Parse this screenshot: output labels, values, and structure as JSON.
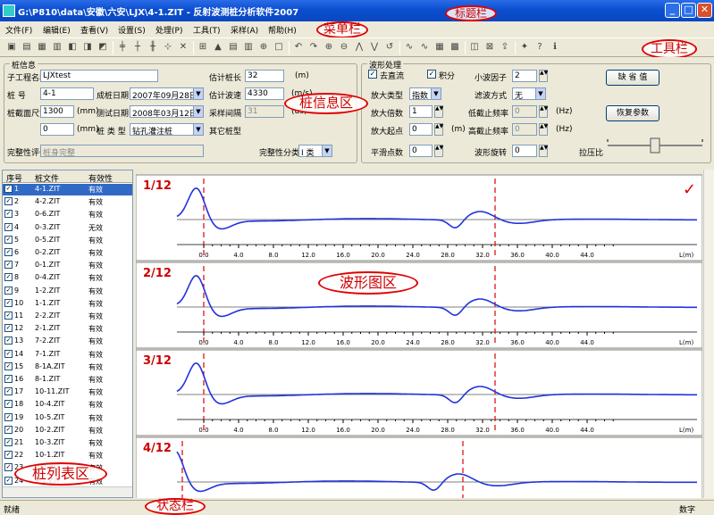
{
  "window": {
    "title": "G:\\P810\\data\\安徽\\六安\\LJX\\4-1.ZIT - 反射波测桩分析软件2007",
    "min": "_",
    "max": "□",
    "close": "✕"
  },
  "menu": [
    "文件(F)",
    "编辑(E)",
    "查看(V)",
    "设置(S)",
    "处理(P)",
    "工具(T)",
    "采样(A)",
    "帮助(H)"
  ],
  "toolbar_icons": [
    "new-icon",
    "open-icon",
    "save-icon",
    "save-as-icon",
    "print-preview-icon",
    "print-icon",
    "print-setup-icon",
    "align-icon",
    "split-icon",
    "merge-icon",
    "cursor-icon",
    "delete-icon",
    "zoom-fit-icon",
    "overlay-icon",
    "table-icon",
    "chart-icon",
    "find-icon",
    "rect-icon",
    "rotate-left-icon",
    "rotate-right-icon",
    "zoom-in-icon",
    "zoom-out-icon",
    "mark-a-icon",
    "mark-b-icon",
    "undo-icon",
    "wave-a-icon",
    "wave-b-icon",
    "grid-icon",
    "excel-icon",
    "print2-icon",
    "report-icon",
    "export-icon",
    "settings-icon",
    "help-icon",
    "about-icon"
  ],
  "callouts": {
    "title": "标题栏",
    "menu": "菜单栏",
    "toolbar": "工具栏",
    "info": "桩信息区",
    "wave": "波形图区",
    "list": "桩列表区",
    "status": "状态栏"
  },
  "pile_info": {
    "group_title": "桩信息",
    "project_label": "子工程名称",
    "project_value": "LJXtest",
    "pile_no_label": "桩 号",
    "pile_no_value": "4-1",
    "section_label": "桩截面尺寸",
    "section_value": "1300",
    "section_unit": "(mm)",
    "section2_value": "0",
    "section2_unit": "(mm)",
    "pour_date_label": "成桩日期",
    "pour_date_value": "2007年09月28日",
    "test_date_label": "测试日期",
    "test_date_value": "2008年03月12日",
    "pile_type_label": "桩 类 型",
    "pile_type_value": "钻孔灌注桩",
    "est_length_label": "估计桩长",
    "est_length_value": "32",
    "est_length_unit": "(m)",
    "est_speed_label": "估计波速",
    "est_speed_value": "4330",
    "est_speed_unit": "(m/s)",
    "interval_label": "采样间隔",
    "interval_value": "31",
    "interval_unit": "(us)",
    "other_label": "其它桩型",
    "integrity_eval_label": "完整性评价",
    "integrity_eval_value": "桩身完整",
    "integrity_class_label": "完整性分类",
    "integrity_class_value": "I 类"
  },
  "wave_proc": {
    "group_title": "波形处理",
    "dc_label": "去直流",
    "integral_label": "积分",
    "wavelet_label": "小波因子",
    "wavelet_value": "2",
    "amp_type_label": "放大类型",
    "amp_type_value": "指数",
    "filter_label": "滤波方式",
    "filter_value": "无",
    "amp_times_label": "放大倍数",
    "amp_times_value": "1",
    "lowcut_label": "低截止频率",
    "lowcut_value": "0",
    "hz": "(Hz)",
    "amp_start_label": "放大起点",
    "amp_start_value": "0",
    "amp_start_unit": "(m)",
    "highcut_label": "高截止频率",
    "highcut_value": "0",
    "smooth_label": "平滑点数",
    "smooth_value": "0",
    "rotate_label": "波形旋转",
    "rotate_value": "0",
    "stretch_label": "拉压比",
    "default_btn": "缺 省 值",
    "restore_btn": "恢复参数"
  },
  "pile_list": {
    "headers": [
      "序号",
      "桩文件",
      "有效性"
    ],
    "rows": [
      [
        "1",
        "4-1.ZIT",
        "有效"
      ],
      [
        "2",
        "4-2.ZIT",
        "有效"
      ],
      [
        "3",
        "0-6.ZIT",
        "有效"
      ],
      [
        "4",
        "0-3.ZIT",
        "无效"
      ],
      [
        "5",
        "0-5.ZIT",
        "有效"
      ],
      [
        "6",
        "0-2.ZIT",
        "有效"
      ],
      [
        "7",
        "0-1.ZIT",
        "有效"
      ],
      [
        "8",
        "0-4.ZIT",
        "有效"
      ],
      [
        "9",
        "1-2.ZIT",
        "有效"
      ],
      [
        "10",
        "1-1.ZIT",
        "有效"
      ],
      [
        "11",
        "2-2.ZIT",
        "有效"
      ],
      [
        "12",
        "2-1.ZIT",
        "有效"
      ],
      [
        "13",
        "7-2.ZIT",
        "有效"
      ],
      [
        "14",
        "7-1.ZIT",
        "有效"
      ],
      [
        "15",
        "8-1A.ZIT",
        "有效"
      ],
      [
        "16",
        "8-1.ZIT",
        "有效"
      ],
      [
        "17",
        "10-11.ZIT",
        "有效"
      ],
      [
        "18",
        "10-4.ZIT",
        "有效"
      ],
      [
        "19",
        "10-5.ZIT",
        "有效"
      ],
      [
        "20",
        "10-2.ZIT",
        "有效"
      ],
      [
        "21",
        "10-3.ZIT",
        "有效"
      ],
      [
        "22",
        "10-1.ZIT",
        "有效"
      ],
      [
        "23",
        "9-2.ZIT",
        "有效"
      ],
      [
        "24",
        "9-1.ZIT",
        "有效"
      ]
    ]
  },
  "waves": {
    "labels": [
      "1/12",
      "2/12",
      "3/12",
      "4/12"
    ],
    "ticks": [
      "0.0",
      "4.0",
      "8.0",
      "12.0",
      "16.0",
      "20.0",
      "24.0",
      "28.0",
      "32.0",
      "36.0",
      "40.0",
      "44.0"
    ],
    "unit": "L(m)",
    "check_mark": "✓",
    "colors": {
      "wave": "#2233dd",
      "marker": "#e00000",
      "label": "#cc0000"
    }
  },
  "status": {
    "left": "就绪",
    "right": "数字"
  }
}
